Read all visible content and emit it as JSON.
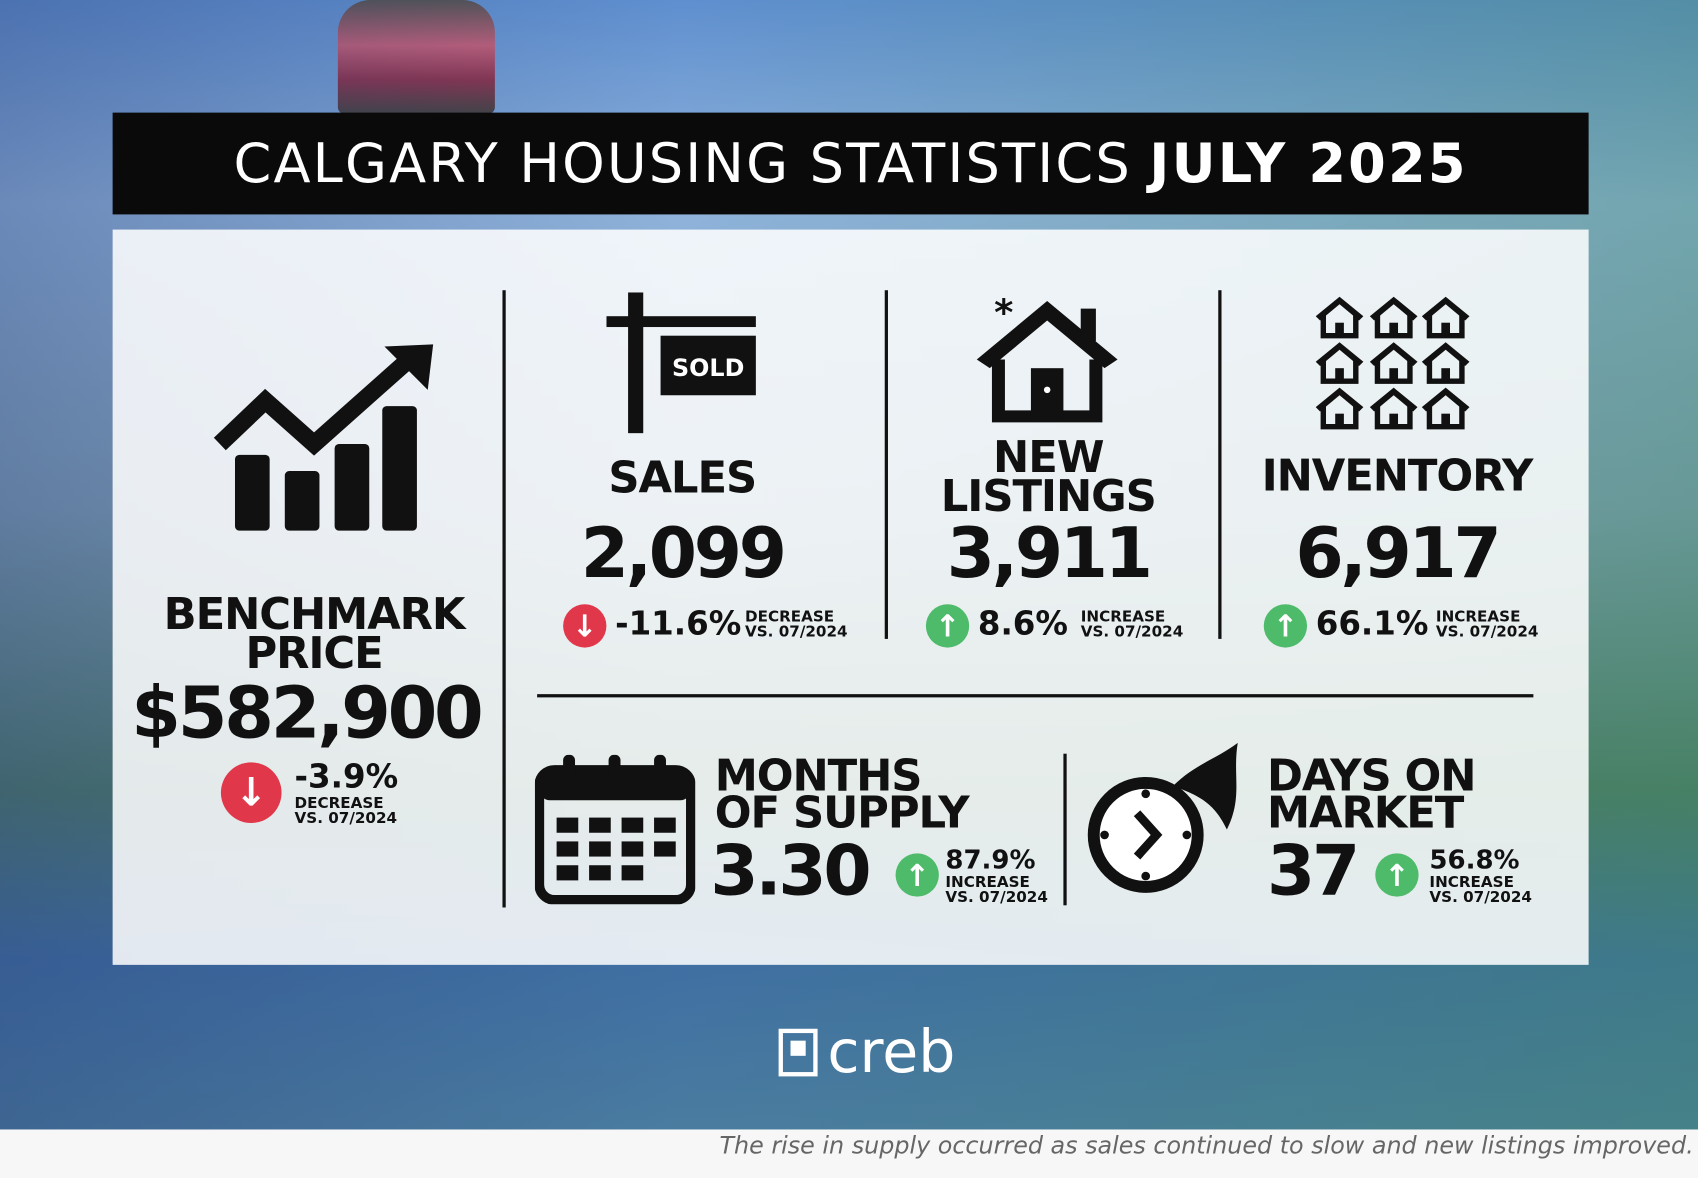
{
  "title": {
    "prefix": "CALGARY HOUSING STATISTICS",
    "period": "JULY 2025"
  },
  "benchmark": {
    "label": "BENCHMARK PRICE",
    "value": "$582,900",
    "change": "-3.9%",
    "direction": "DECREASE",
    "compare": "VS. 07/2024"
  },
  "sales": {
    "label": "SALES",
    "sign_text": "SOLD",
    "value": "2,099",
    "change": "-11.6%",
    "direction": "DECREASE",
    "compare": "VS. 07/2024"
  },
  "new_listings": {
    "label": "NEW LISTINGS",
    "value": "3,911",
    "change": "8.6%",
    "direction": "INCREASE",
    "compare": "VS. 07/2024"
  },
  "inventory": {
    "label": "INVENTORY",
    "value": "6,917",
    "change": "66.1%",
    "direction": "INCREASE",
    "compare": "VS. 07/2024"
  },
  "months_supply": {
    "label": "MONTHS OF SUPPLY",
    "value": "3.30",
    "change": "87.9%",
    "direction": "INCREASE",
    "compare": "VS. 07/2024"
  },
  "days_on_market": {
    "label": "DAYS ON MARKET",
    "value": "37",
    "change": "56.8%",
    "direction": "INCREASE",
    "compare": "VS. 07/2024"
  },
  "logo": "creb",
  "caption": "The rise in supply occurred as sales continued to slow and new listings improved.",
  "colors": {
    "decrease": "#e0384a",
    "increase": "#4dbb6a",
    "title_bar": "#0a0a0a"
  }
}
